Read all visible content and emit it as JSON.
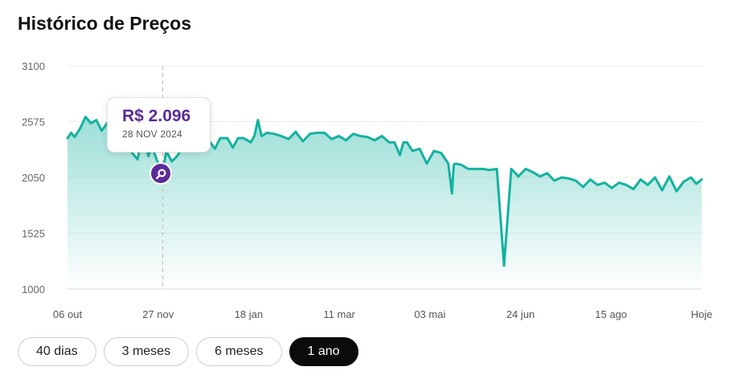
{
  "header": {
    "title": "Histórico de Preços"
  },
  "chart_data": {
    "type": "area",
    "title": "Histórico de Preços",
    "xlabel": "",
    "ylabel": "",
    "ylim": [
      1000,
      3100
    ],
    "yticks": [
      3100,
      2575,
      2050,
      1525,
      1000
    ],
    "xticks": [
      "06 out",
      "27 nov",
      "18 jan",
      "11 mar",
      "03 mai",
      "24 jun",
      "15 ago",
      "Hoje"
    ],
    "xlim": [
      "2024-10-06",
      "2025-09-24"
    ],
    "grid": true,
    "line_color": "#14b2a0",
    "fill_color": "#14b2a0",
    "series": [
      {
        "x": [
          "2024-10-06",
          "2024-10-08",
          "2024-10-10",
          "2024-10-13",
          "2024-10-16",
          "2024-10-19",
          "2024-10-22",
          "2024-10-25",
          "2024-10-28",
          "2024-10-31",
          "2024-11-02",
          "2024-11-05",
          "2024-11-08",
          "2024-11-11",
          "2024-11-14",
          "2024-11-17",
          "2024-11-20",
          "2024-11-22",
          "2024-11-25",
          "2024-11-28",
          "2024-11-30",
          "2024-12-03",
          "2024-12-06",
          "2024-12-09",
          "2024-12-12",
          "2024-12-15",
          "2024-12-18",
          "2024-12-21",
          "2024-12-24",
          "2024-12-27",
          "2024-12-30",
          "2025-01-03",
          "2025-01-06",
          "2025-01-09",
          "2025-01-12",
          "2025-01-16",
          "2025-01-18",
          "2025-01-20",
          "2025-01-22",
          "2025-01-25",
          "2025-01-29",
          "2025-02-02",
          "2025-02-06",
          "2025-02-10",
          "2025-02-14",
          "2025-02-18",
          "2025-02-22",
          "2025-02-26",
          "2025-03-02",
          "2025-03-06",
          "2025-03-10",
          "2025-03-14",
          "2025-03-18",
          "2025-03-22",
          "2025-03-26",
          "2025-03-30",
          "2025-04-03",
          "2025-04-06",
          "2025-04-09",
          "2025-04-11",
          "2025-04-13",
          "2025-04-16",
          "2025-04-20",
          "2025-04-24",
          "2025-04-28",
          "2025-05-02",
          "2025-05-06",
          "2025-05-08",
          "2025-05-09",
          "2025-05-10",
          "2025-05-13",
          "2025-05-17",
          "2025-05-21",
          "2025-05-25",
          "2025-05-29",
          "2025-06-02",
          "2025-06-06",
          "2025-06-10",
          "2025-06-14",
          "2025-06-18",
          "2025-06-22",
          "2025-06-26",
          "2025-06-30",
          "2025-07-04",
          "2025-07-08",
          "2025-07-12",
          "2025-07-16",
          "2025-07-20",
          "2025-07-24",
          "2025-07-28",
          "2025-08-01",
          "2025-08-05",
          "2025-08-09",
          "2025-08-13",
          "2025-08-17",
          "2025-08-21",
          "2025-08-25",
          "2025-08-29",
          "2025-09-02",
          "2025-09-06",
          "2025-09-10",
          "2025-09-14",
          "2025-09-18",
          "2025-09-21",
          "2025-09-24"
        ],
        "values": [
          2420,
          2470,
          2430,
          2510,
          2620,
          2560,
          2590,
          2490,
          2560,
          2460,
          2350,
          2410,
          2390,
          2280,
          2220,
          2470,
          2250,
          2340,
          2200,
          2096,
          2300,
          2200,
          2250,
          2330,
          2420,
          2430,
          2430,
          2400,
          2390,
          2320,
          2420,
          2420,
          2330,
          2420,
          2420,
          2380,
          2440,
          2590,
          2440,
          2470,
          2460,
          2440,
          2410,
          2480,
          2390,
          2460,
          2470,
          2470,
          2410,
          2440,
          2400,
          2460,
          2440,
          2430,
          2400,
          2440,
          2380,
          2380,
          2260,
          2380,
          2380,
          2300,
          2320,
          2180,
          2300,
          2280,
          2180,
          1900,
          2170,
          2180,
          2170,
          2130,
          2130,
          2130,
          2120,
          2130,
          1220,
          2130,
          2060,
          2130,
          2100,
          2060,
          2090,
          2020,
          2050,
          2040,
          2020,
          1960,
          2030,
          1980,
          2000,
          1950,
          2000,
          1980,
          1940,
          2030,
          1980,
          2050,
          1930,
          2060,
          1920,
          2010,
          2050,
          1990,
          2030
        ]
      }
    ],
    "tooltip": {
      "price": "R$ 2.096",
      "date": "28 NOV 2024",
      "x": "2024-11-28",
      "value": 2096
    }
  },
  "range_selector": {
    "options": [
      "40 dias",
      "3 meses",
      "6 meses",
      "1 ano"
    ],
    "selected": "1 ano"
  }
}
